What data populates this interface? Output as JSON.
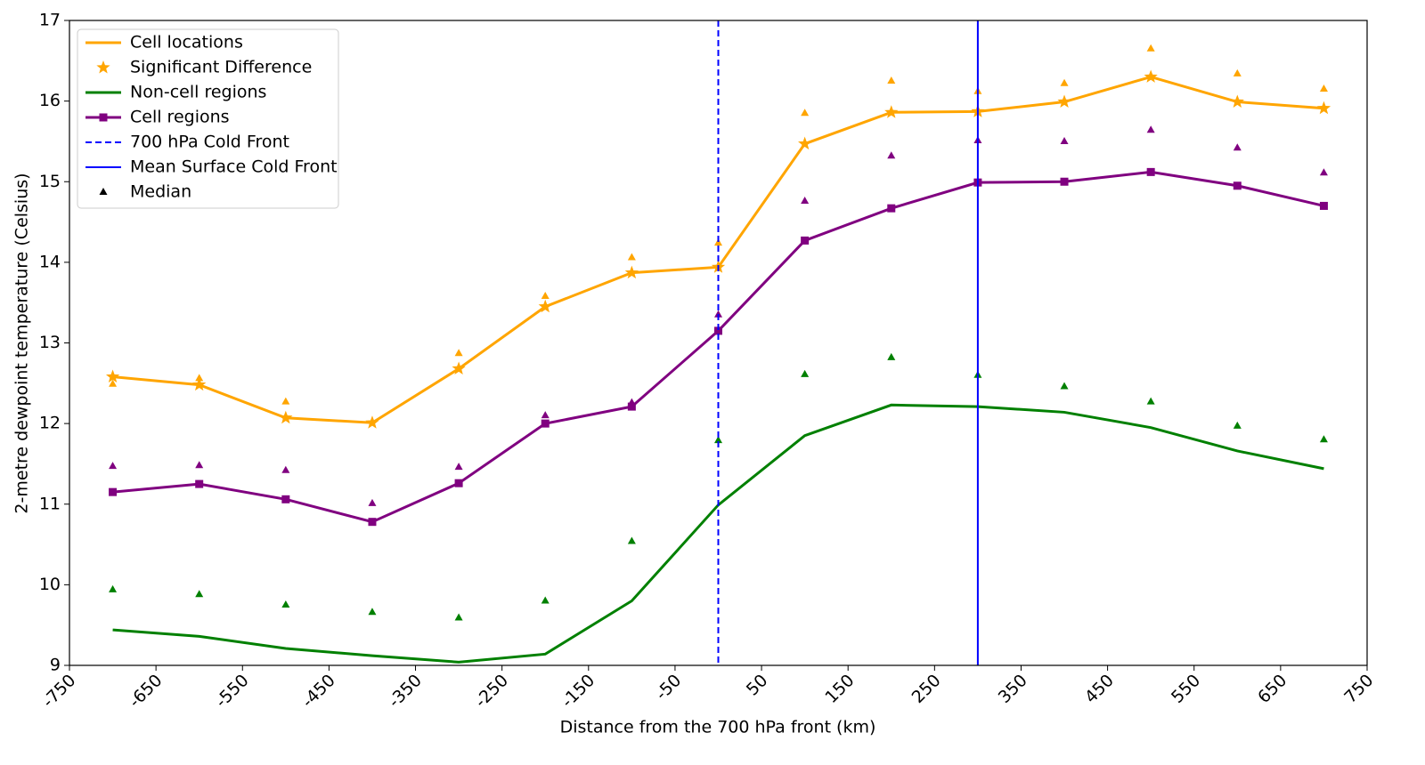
{
  "chart_data": {
    "type": "line",
    "xlabel": "Distance from the 700 hPa front (km)",
    "ylabel": "2-metre dewpoint temperature (Celsius)",
    "xlim": [
      -750,
      750
    ],
    "ylim": [
      9,
      17
    ],
    "xticks": [
      -750,
      -650,
      -550,
      -450,
      -350,
      -250,
      -150,
      -50,
      50,
      150,
      250,
      350,
      450,
      550,
      650,
      750
    ],
    "yticks": [
      9,
      10,
      11,
      12,
      13,
      14,
      15,
      16,
      17
    ],
    "legend": "upper left",
    "x": [
      -700,
      -600,
      -500,
      -400,
      -300,
      -200,
      -100,
      0,
      100,
      200,
      300,
      400,
      500,
      600,
      700
    ],
    "series": [
      {
        "name": "Cell locations",
        "color": "#FFA500",
        "style": "line",
        "values": [
          12.58,
          12.48,
          12.07,
          12.01,
          12.68,
          13.45,
          13.87,
          13.94,
          15.47,
          15.86,
          15.87,
          15.99,
          16.3,
          15.99,
          15.91
        ]
      },
      {
        "name": "Significant Difference",
        "color": "#FFA500",
        "style": "star",
        "values": [
          12.58,
          12.48,
          12.07,
          12.01,
          12.68,
          13.45,
          13.87,
          13.94,
          15.47,
          15.86,
          15.87,
          15.99,
          16.3,
          15.99,
          15.91
        ]
      },
      {
        "name": "Non-cell regions",
        "color": "#008000",
        "style": "line",
        "values": [
          9.44,
          9.36,
          9.21,
          9.12,
          9.04,
          9.14,
          9.8,
          10.99,
          11.85,
          12.23,
          12.21,
          12.14,
          11.95,
          11.66,
          11.44
        ]
      },
      {
        "name": "Cell regions",
        "color": "#800080",
        "style": "line-square",
        "values": [
          11.15,
          11.25,
          11.06,
          10.78,
          11.26,
          12.0,
          12.21,
          13.15,
          14.27,
          14.67,
          14.99,
          15.0,
          15.12,
          14.95,
          14.7
        ]
      }
    ],
    "vlines": [
      {
        "name": "700 hPa Cold Front",
        "x": 0,
        "color": "#0000FF",
        "dashed": true
      },
      {
        "name": "Mean Surface Cold Front",
        "x": 300,
        "color": "#0000FF",
        "dashed": false
      }
    ],
    "medians": {
      "name": "Median",
      "color": "#000000",
      "groups": [
        {
          "color": "#FFA500",
          "values": [
            12.49,
            12.56,
            12.27,
            null,
            12.87,
            13.58,
            14.06,
            14.24,
            15.85,
            16.25,
            16.12,
            16.22,
            16.65,
            16.34,
            16.15
          ]
        },
        {
          "color": "#008000",
          "values": [
            9.94,
            9.88,
            9.75,
            9.66,
            9.59,
            9.8,
            10.54,
            11.79,
            12.61,
            12.82,
            12.6,
            12.46,
            12.27,
            11.97,
            11.8
          ]
        },
        {
          "color": "#800080",
          "values": [
            11.47,
            11.48,
            11.42,
            11.01,
            11.46,
            12.1,
            12.26,
            13.35,
            14.76,
            15.32,
            15.51,
            15.5,
            15.64,
            15.42,
            15.11
          ]
        }
      ]
    }
  }
}
